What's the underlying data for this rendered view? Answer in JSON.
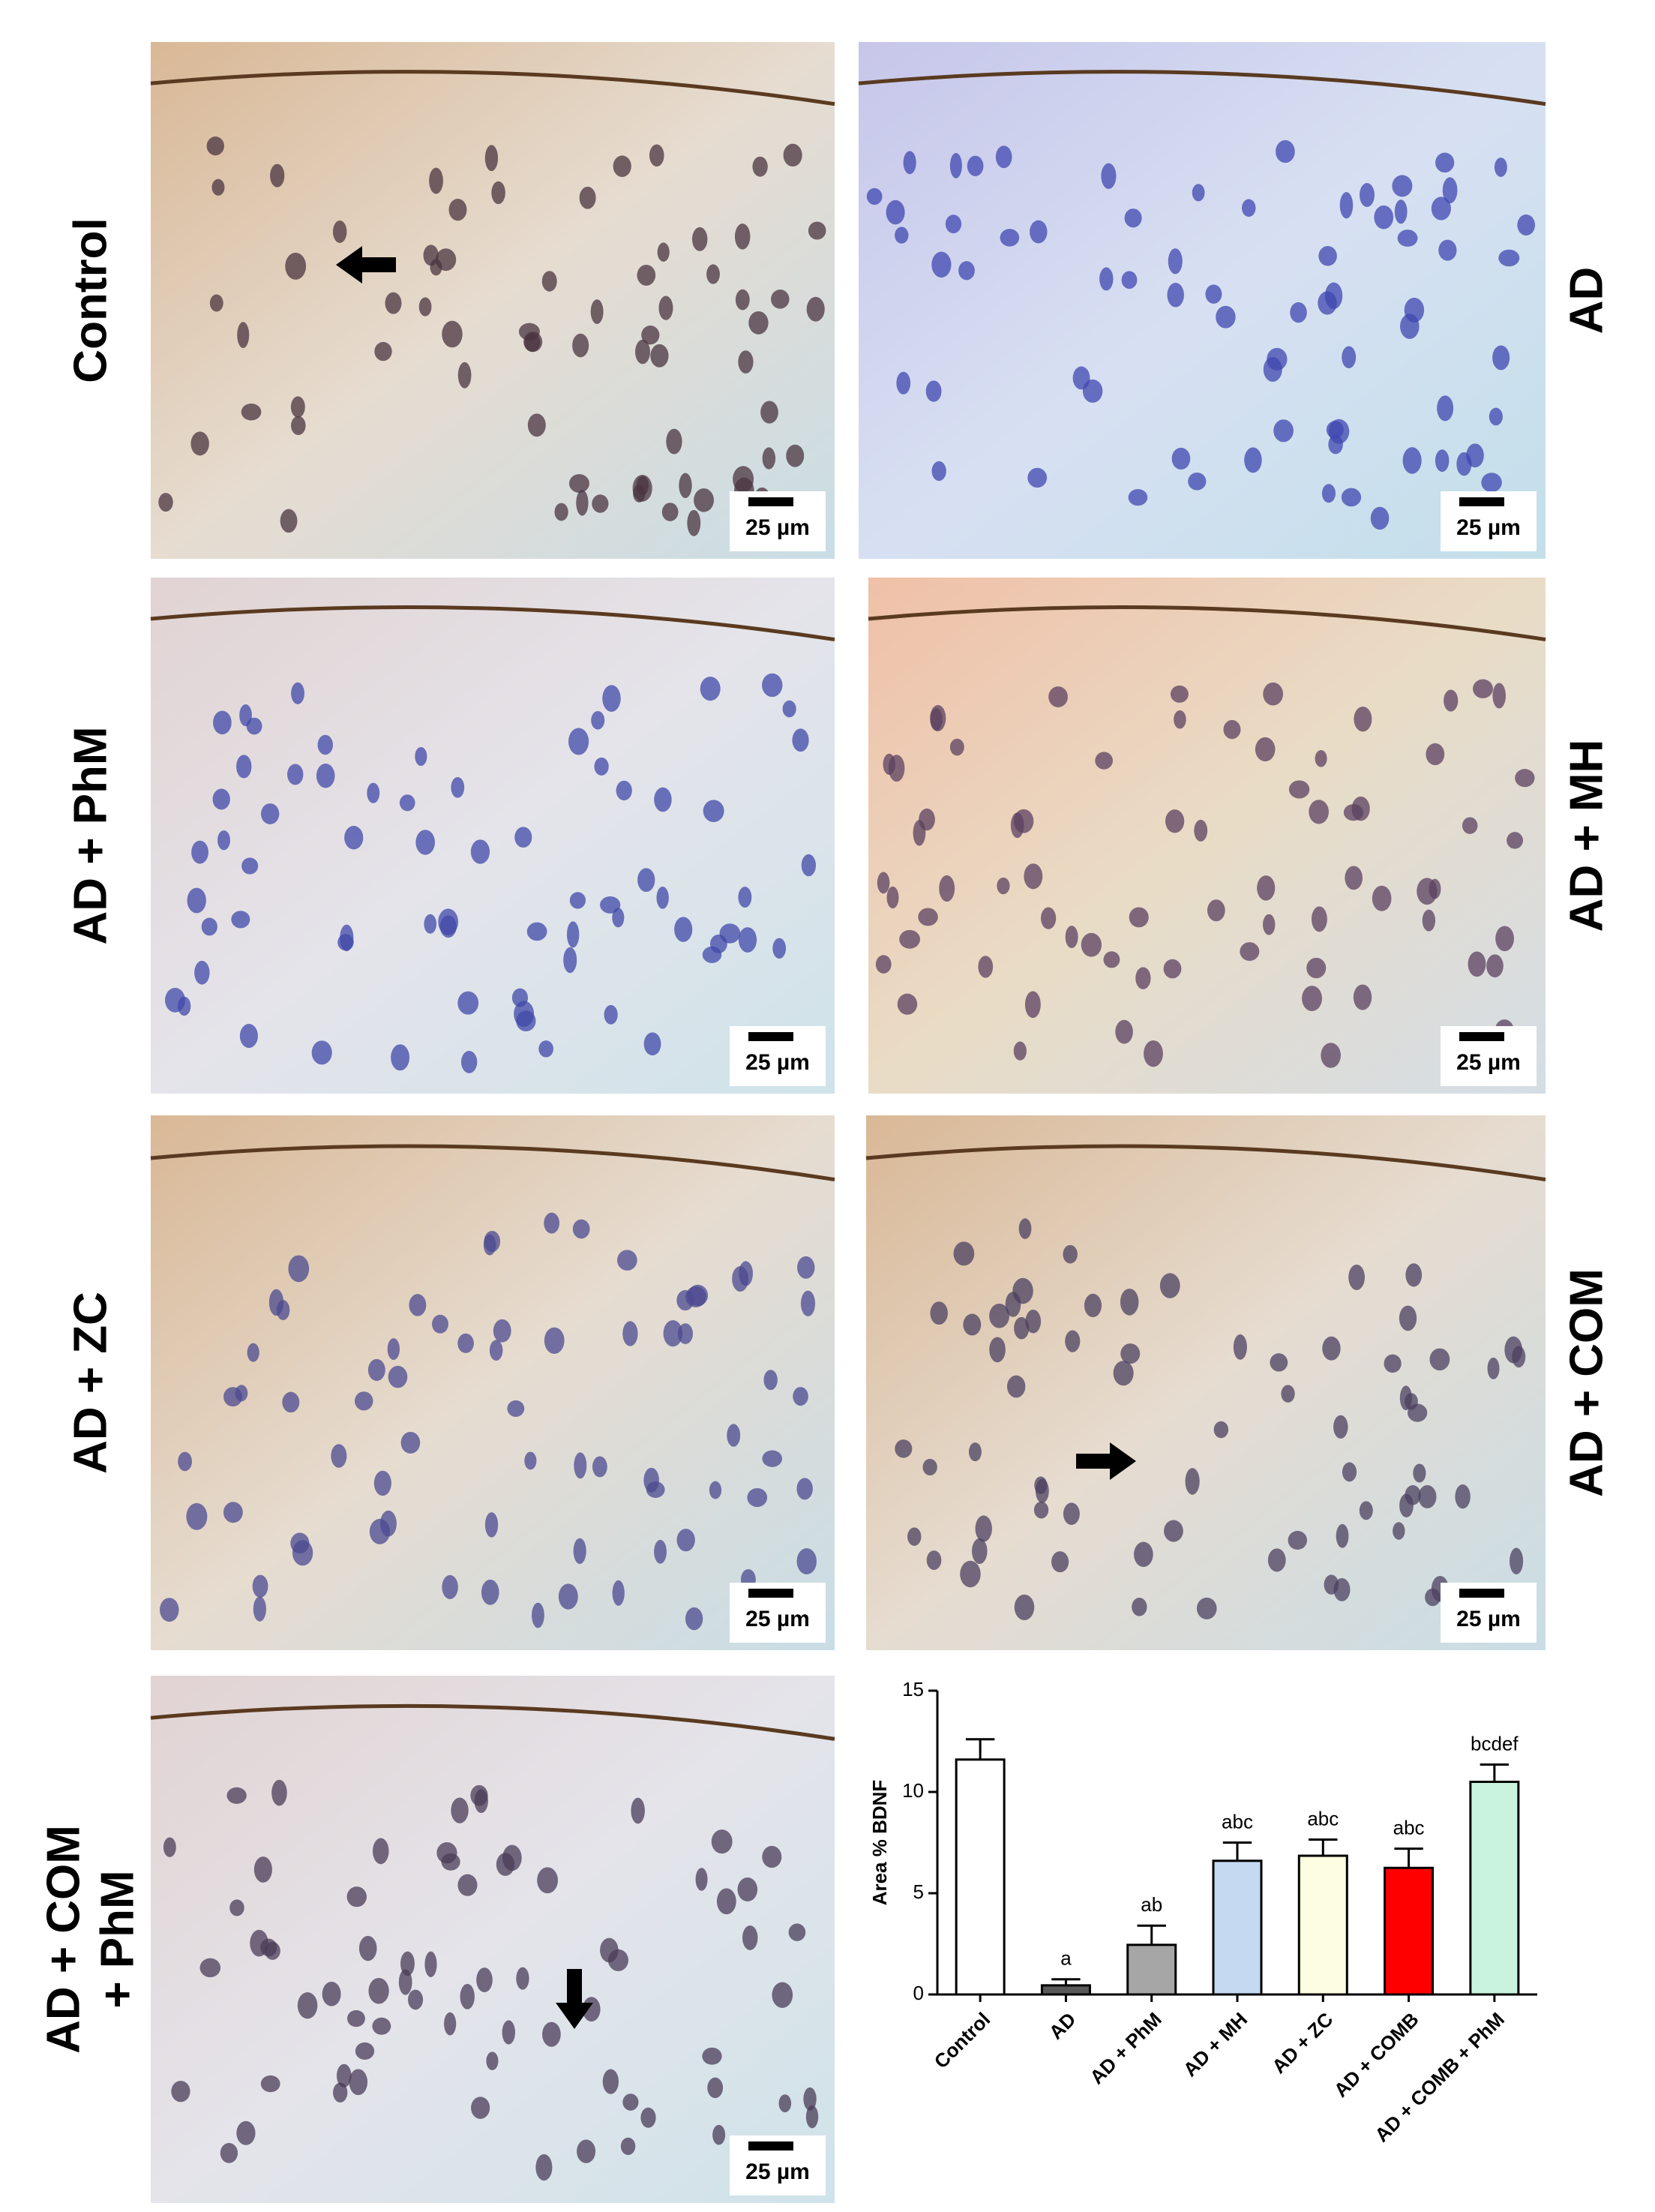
{
  "panels": [
    {
      "lines": [
        "Control"
      ],
      "scale": "25 µm"
    },
    {
      "lines": [
        "AD"
      ],
      "scale": "25 µm"
    },
    {
      "lines": [
        "AD + PhM"
      ],
      "scale": "25 µm"
    },
    {
      "lines": [
        "AD + MH"
      ],
      "scale": "25 µm"
    },
    {
      "lines": [
        "AD + ZC"
      ],
      "scale": "25 µm"
    },
    {
      "lines": [
        "AD + COM"
      ],
      "scale": "25 µm"
    },
    {
      "lines": [
        "AD + COM",
        "+ PhM"
      ],
      "scale": "25 µm"
    }
  ],
  "chart_data": {
    "type": "bar",
    "ylabel": "Area % BDNF",
    "categories": [
      "Control",
      "AD",
      "AD + PhM",
      "AD + MH",
      "AD + ZC",
      "AD + COMB",
      "AD + COMB + PhM"
    ],
    "values": [
      11.6,
      0.45,
      2.45,
      6.6,
      6.85,
      6.25,
      10.5
    ],
    "errors": [
      1.0,
      0.3,
      0.95,
      0.9,
      0.8,
      0.95,
      0.85
    ],
    "annotations": [
      null,
      "a",
      "ab",
      "abc",
      "abc",
      "abc",
      "bcdef"
    ],
    "colors": [
      "#ffffff",
      "#595959",
      "#a6a6a6",
      "#c5d9f1",
      "#fdfde2",
      "#ff0000",
      "#c9f2df"
    ],
    "ylim": [
      0,
      15
    ],
    "yticks": [
      0,
      5,
      10,
      15
    ]
  }
}
